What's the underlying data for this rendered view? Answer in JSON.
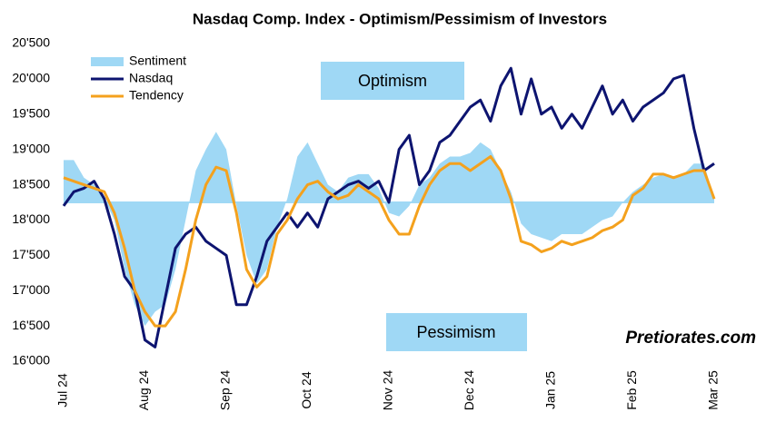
{
  "chart_data": {
    "type": "line",
    "title": "Nasdaq Comp. Index - Optimism/Pessimism of Investors",
    "annotations": [
      "Optimism",
      "Pessimism",
      "Pretiorates.com"
    ],
    "categories": [
      "Jul 24",
      null,
      null,
      null,
      null,
      null,
      null,
      null,
      "Aug 24",
      null,
      null,
      null,
      null,
      null,
      null,
      null,
      "Sep 24",
      null,
      null,
      null,
      null,
      null,
      null,
      null,
      "Oct 24",
      null,
      null,
      null,
      null,
      null,
      null,
      null,
      "Nov 24",
      null,
      null,
      null,
      null,
      null,
      null,
      null,
      "Dec 24",
      null,
      null,
      null,
      null,
      null,
      null,
      null,
      "Jan 25",
      null,
      null,
      null,
      null,
      null,
      null,
      null,
      "Feb 25",
      null,
      null,
      null,
      null,
      null,
      null,
      null,
      "Mar 25"
    ],
    "baseline": 18250,
    "series": [
      {
        "name": "Sentiment",
        "color": "#9fd8f5",
        "style": "area",
        "values": [
          18850,
          18850,
          18600,
          18500,
          18300,
          18000,
          17300,
          16800,
          16500,
          16700,
          16800,
          17300,
          18000,
          18700,
          19000,
          19250,
          19000,
          18200,
          17500,
          17100,
          17300,
          17900,
          18300,
          18900,
          19100,
          18800,
          18500,
          18400,
          18600,
          18650,
          18650,
          18450,
          18100,
          18050,
          18200,
          18500,
          18600,
          18800,
          18900,
          18900,
          18950,
          19100,
          19000,
          18700,
          18400,
          17950,
          17800,
          17750,
          17700,
          17800,
          17800,
          17800,
          17900,
          18000,
          18050,
          18250,
          18400,
          18500,
          18600,
          18650,
          18600,
          18650,
          18800,
          18800,
          18300
        ]
      },
      {
        "name": "Nasdaq",
        "color": "#0d1470",
        "style": "line",
        "values": [
          18200,
          18400,
          18450,
          18550,
          18300,
          17800,
          17200,
          17000,
          16300,
          16200,
          16900,
          17600,
          17800,
          17900,
          17700,
          17600,
          17500,
          16800,
          16800,
          17200,
          17700,
          17900,
          18100,
          17900,
          18100,
          17900,
          18300,
          18400,
          18500,
          18550,
          18450,
          18550,
          18250,
          19000,
          19200,
          18500,
          18700,
          19100,
          19200,
          19400,
          19600,
          19700,
          19400,
          19900,
          20150,
          19500,
          20000,
          19500,
          19600,
          19300,
          19500,
          19300,
          19600,
          19900,
          19500,
          19700,
          19400,
          19600,
          19700,
          19800,
          20000,
          20050,
          19300,
          18700,
          18800
        ]
      },
      {
        "name": "Tendency",
        "color": "#f4a11d",
        "style": "line",
        "values": [
          18600,
          18550,
          18500,
          18450,
          18400,
          18100,
          17600,
          17000,
          16700,
          16500,
          16500,
          16700,
          17300,
          18000,
          18500,
          18750,
          18700,
          18100,
          17300,
          17050,
          17200,
          17800,
          18000,
          18300,
          18500,
          18550,
          18400,
          18300,
          18350,
          18500,
          18400,
          18300,
          18000,
          17800,
          17800,
          18200,
          18500,
          18700,
          18800,
          18800,
          18700,
          18800,
          18900,
          18700,
          18300,
          17700,
          17650,
          17550,
          17600,
          17700,
          17650,
          17700,
          17750,
          17850,
          17900,
          18000,
          18350,
          18450,
          18650,
          18650,
          18600,
          18650,
          18700,
          18700,
          18300
        ]
      }
    ],
    "ylim": [
      16000,
      20500
    ],
    "yticks": [
      {
        "value": 16000,
        "label": "16'000"
      },
      {
        "value": 16500,
        "label": "16'500"
      },
      {
        "value": 17000,
        "label": "17'000"
      },
      {
        "value": 17500,
        "label": "17'500"
      },
      {
        "value": 18000,
        "label": "18'000"
      },
      {
        "value": 18500,
        "label": "18'500"
      },
      {
        "value": 19000,
        "label": "19'000"
      },
      {
        "value": 19500,
        "label": "19'500"
      },
      {
        "value": 20000,
        "label": "20'000"
      },
      {
        "value": 20500,
        "label": "20'500"
      }
    ],
    "grid": false
  }
}
